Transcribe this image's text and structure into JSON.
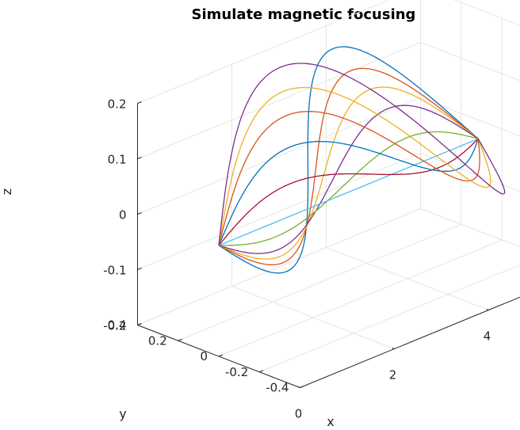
{
  "chart_data": {
    "type": "line",
    "title": "Simulate magnetic focusing",
    "xlabel": "x",
    "ylabel": "y",
    "zlabel": "z",
    "xlim": [
      0,
      6
    ],
    "ylim": [
      -0.4,
      0.4
    ],
    "zlim": [
      -0.2,
      0.2
    ],
    "x_ticks": [
      "0",
      "2",
      "4",
      "6"
    ],
    "y_ticks": [
      "-0.4",
      "-0.2",
      "0",
      "0.2",
      "0.4"
    ],
    "z_ticks": [
      "-0.2",
      "-0.1",
      "0",
      "0.1",
      "0.2"
    ],
    "grid": true,
    "focus_points": [
      [
        0,
        0,
        0
      ],
      [
        5.5,
        0,
        0
      ]
    ],
    "series": [
      {
        "color": "#0072BD",
        "values": {
          "y_amp": -0.2,
          "z_amp": -0.12,
          "mid_y": 0.2,
          "mid_z": 0.065
        }
      },
      {
        "color": "#D95319",
        "values": {
          "y_amp": -0.15,
          "z_amp": -0.1,
          "mid_y": 0.15,
          "mid_z": 0.055
        }
      },
      {
        "color": "#EDB120",
        "values": {
          "y_amp": -0.1,
          "z_amp": -0.085,
          "mid_y": 0.1,
          "mid_z": 0.045
        }
      },
      {
        "color": "#7E2F8E",
        "values": {
          "y_amp": -0.05,
          "z_amp": -0.07,
          "mid_y": 0.05,
          "mid_z": 0.035
        }
      },
      {
        "color": "#77AC30",
        "values": {
          "y_amp": 0.0,
          "z_amp": -0.04,
          "mid_y": 0.0,
          "mid_z": 0.02
        }
      },
      {
        "color": "#4DBEEE",
        "values": {
          "y_amp": 0.0,
          "z_amp": 0.0,
          "mid_y": 0.0,
          "mid_z": 0.0
        }
      },
      {
        "color": "#A2142F",
        "values": {
          "y_amp": 0.05,
          "z_amp": 0.025,
          "mid_y": -0.05,
          "mid_z": 0.04
        }
      },
      {
        "color": "#0072BD",
        "values": {
          "y_amp": 0.1,
          "z_amp": 0.05,
          "mid_y": -0.1,
          "mid_z": 0.09
        }
      },
      {
        "color": "#D95319",
        "values": {
          "y_amp": 0.15,
          "z_amp": 0.08,
          "mid_y": -0.15,
          "mid_z": 0.125
        }
      },
      {
        "color": "#EDB120",
        "values": {
          "y_amp": 0.2,
          "z_amp": 0.1,
          "mid_y": -0.2,
          "mid_z": 0.155
        }
      },
      {
        "color": "#7E2F8E",
        "values": {
          "y_amp": 0.25,
          "z_amp": 0.12,
          "mid_y": -0.25,
          "mid_z": 0.185
        }
      }
    ]
  }
}
